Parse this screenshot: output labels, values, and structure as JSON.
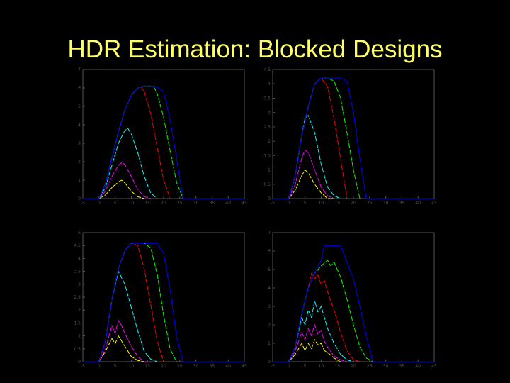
{
  "slide": {
    "title": "HDR Estimation: Blocked Designs"
  },
  "colors": {
    "background": "#000000",
    "title": "#ffff66",
    "axes": "#555555"
  },
  "chart_data": [
    {
      "type": "line",
      "panel": "top-left",
      "xlim": [
        -5,
        45
      ],
      "ylim": [
        0,
        7
      ],
      "xticks": [
        "-5",
        "0",
        "5",
        "10",
        "15",
        "20",
        "25",
        "30",
        "35",
        "40",
        "45"
      ],
      "yticks": [
        "0",
        "1",
        "2",
        "3",
        "4",
        "5",
        "6",
        "7"
      ],
      "series": [
        {
          "color": "#ffff00",
          "x": [
            0,
            2,
            4,
            6,
            7,
            8,
            10,
            12,
            14
          ],
          "y": [
            0,
            0.2,
            0.6,
            0.9,
            1.0,
            0.85,
            0.4,
            0.1,
            0
          ]
        },
        {
          "color": "#ff00ff",
          "x": [
            0,
            2,
            4,
            6,
            7,
            8,
            10,
            12,
            14,
            16
          ],
          "y": [
            0,
            0.4,
            1.2,
            1.8,
            1.95,
            1.85,
            1.2,
            0.5,
            0.1,
            0
          ]
        },
        {
          "color": "#00ffff",
          "x": [
            0,
            2,
            4,
            6,
            8,
            9,
            10,
            12,
            14,
            16,
            18
          ],
          "y": [
            0,
            0.6,
            1.8,
            3.0,
            3.7,
            3.8,
            3.5,
            2.5,
            1.2,
            0.3,
            0
          ]
        },
        {
          "color": "#ff0000",
          "x": [
            0,
            2,
            4,
            6,
            8,
            10,
            12,
            13,
            14,
            16,
            18,
            20,
            22
          ],
          "y": [
            0,
            0.8,
            2.2,
            3.6,
            4.8,
            5.6,
            6.0,
            6.05,
            5.8,
            4.6,
            2.8,
            1.0,
            0
          ]
        },
        {
          "color": "#00ff00",
          "x": [
            0,
            2,
            4,
            6,
            8,
            10,
            12,
            14,
            16,
            17,
            18,
            20,
            22,
            24,
            26
          ],
          "y": [
            0,
            0.8,
            2.2,
            3.6,
            4.8,
            5.6,
            6.0,
            6.1,
            6.1,
            6.05,
            5.7,
            4.4,
            2.6,
            0.9,
            0
          ]
        },
        {
          "color": "#0000ff",
          "x": [
            -5,
            0,
            2,
            4,
            6,
            8,
            10,
            12,
            14,
            16,
            18,
            20,
            22,
            24,
            26,
            45
          ],
          "y": [
            0,
            0,
            0.8,
            2.2,
            3.6,
            4.8,
            5.6,
            6.0,
            6.1,
            6.1,
            6.05,
            5.8,
            4.3,
            2.2,
            0,
            0
          ]
        }
      ]
    },
    {
      "type": "line",
      "panel": "top-right",
      "xlim": [
        -5,
        45
      ],
      "ylim": [
        0,
        4.5
      ],
      "xticks": [
        "-5",
        "0",
        "5",
        "10",
        "15",
        "20",
        "25",
        "30",
        "35",
        "40",
        "45"
      ],
      "yticks": [
        "0",
        "0.5",
        "1",
        "1.5",
        "2",
        "2.5",
        "3",
        "3.5",
        "4",
        "4.5"
      ],
      "series": [
        {
          "color": "#ffff00",
          "x": [
            0,
            2,
            4,
            5,
            6,
            8,
            10,
            12,
            14
          ],
          "y": [
            0,
            0.3,
            0.8,
            1.0,
            0.9,
            0.5,
            0.2,
            0,
            0
          ]
        },
        {
          "color": "#ff00ff",
          "x": [
            0,
            2,
            4,
            5,
            6,
            8,
            10,
            12,
            14
          ],
          "y": [
            0,
            0.5,
            1.4,
            1.7,
            1.6,
            1.0,
            0.4,
            0.1,
            0
          ]
        },
        {
          "color": "#00ffff",
          "x": [
            0,
            2,
            4,
            5,
            6,
            8,
            10,
            12,
            14,
            16
          ],
          "y": [
            0,
            0.8,
            2.2,
            2.8,
            2.9,
            2.3,
            1.2,
            0.4,
            0.1,
            0
          ]
        },
        {
          "color": "#ff0000",
          "x": [
            0,
            2,
            4,
            6,
            8,
            10,
            12,
            14,
            16,
            18
          ],
          "y": [
            0,
            0.8,
            2.2,
            3.2,
            4.0,
            4.2,
            3.9,
            2.8,
            1.4,
            0
          ]
        },
        {
          "color": "#00ff00",
          "x": [
            0,
            2,
            4,
            6,
            8,
            10,
            12,
            14,
            16,
            18,
            20,
            22
          ],
          "y": [
            0,
            0.8,
            2.2,
            3.2,
            4.0,
            4.2,
            4.2,
            4.1,
            3.5,
            2.3,
            1.0,
            0
          ]
        },
        {
          "color": "#0000ff",
          "x": [
            -5,
            0,
            2,
            4,
            6,
            8,
            10,
            12,
            14,
            16,
            18,
            20,
            22,
            24,
            45
          ],
          "y": [
            0,
            0,
            0.8,
            2.2,
            3.2,
            4.0,
            4.2,
            4.2,
            4.2,
            4.2,
            4.1,
            3.0,
            1.4,
            0,
            0
          ]
        }
      ]
    },
    {
      "type": "line",
      "panel": "bottom-left",
      "xlim": [
        -5,
        45
      ],
      "ylim": [
        0,
        5
      ],
      "xticks": [
        "-5",
        "0",
        "5",
        "10",
        "15",
        "20",
        "25",
        "30",
        "35",
        "40",
        "45"
      ],
      "yticks": [
        "0",
        "0.5",
        "1",
        "1.5",
        "2",
        "2.5",
        "3",
        "3.5",
        "4",
        "4.5",
        "5"
      ],
      "series": [
        {
          "color": "#ffff00",
          "x": [
            0,
            2,
            4,
            5,
            6,
            7,
            8,
            10,
            12,
            14
          ],
          "y": [
            0,
            0.4,
            0.9,
            0.7,
            1.0,
            0.8,
            0.6,
            0.2,
            0.05,
            0
          ]
        },
        {
          "color": "#ff00ff",
          "x": [
            0,
            2,
            4,
            5,
            6,
            7,
            8,
            10,
            12,
            14,
            16
          ],
          "y": [
            0,
            0.5,
            1.4,
            1.1,
            1.6,
            1.4,
            1.1,
            0.6,
            0.2,
            0,
            0
          ]
        },
        {
          "color": "#00ffff",
          "x": [
            0,
            2,
            4,
            6,
            8,
            10,
            12,
            14,
            16,
            18
          ],
          "y": [
            0,
            0.8,
            2.4,
            3.5,
            3.0,
            2.1,
            1.2,
            0.4,
            0.1,
            0
          ]
        },
        {
          "color": "#ff0000",
          "x": [
            0,
            2,
            4,
            6,
            8,
            10,
            12,
            14,
            16,
            18,
            20
          ],
          "y": [
            0,
            0.8,
            2.4,
            3.6,
            4.3,
            4.6,
            4.5,
            3.6,
            2.2,
            0.8,
            0
          ]
        },
        {
          "color": "#00ff00",
          "x": [
            0,
            2,
            4,
            6,
            8,
            10,
            12,
            14,
            16,
            18,
            20,
            22,
            24
          ],
          "y": [
            0,
            0.8,
            2.4,
            3.6,
            4.3,
            4.6,
            4.6,
            4.6,
            4.4,
            3.4,
            1.8,
            0.5,
            0
          ]
        },
        {
          "color": "#0000ff",
          "x": [
            -5,
            0,
            2,
            4,
            6,
            8,
            10,
            12,
            14,
            16,
            18,
            20,
            22,
            24,
            26,
            45
          ],
          "y": [
            0,
            0,
            0.8,
            2.4,
            3.6,
            4.3,
            4.6,
            4.6,
            4.6,
            4.6,
            4.6,
            4.2,
            2.8,
            1.0,
            0,
            0
          ]
        }
      ]
    },
    {
      "type": "line",
      "panel": "bottom-right",
      "xlim": [
        -5,
        45
      ],
      "ylim": [
        0,
        7
      ],
      "xticks": [
        "-5",
        "0",
        "5",
        "10",
        "15",
        "20",
        "25",
        "30",
        "35",
        "40",
        "45"
      ],
      "yticks": [
        "0",
        "1",
        "2",
        "3",
        "4",
        "5",
        "6",
        "7"
      ],
      "series": [
        {
          "color": "#ffff00",
          "x": [
            0,
            2,
            4,
            5,
            6,
            7,
            8,
            9,
            10,
            11,
            12,
            14,
            16
          ],
          "y": [
            0,
            0.4,
            1.0,
            0.6,
            1.0,
            0.7,
            1.2,
            0.9,
            1.0,
            0.6,
            0.5,
            0.2,
            0
          ]
        },
        {
          "color": "#ff00ff",
          "x": [
            0,
            2,
            4,
            5,
            6,
            7,
            8,
            9,
            10,
            11,
            12,
            14,
            16,
            18
          ],
          "y": [
            0,
            0.6,
            1.6,
            1.2,
            1.8,
            1.4,
            2.0,
            1.5,
            1.7,
            1.1,
            0.8,
            0.3,
            0.1,
            0
          ]
        },
        {
          "color": "#00ffff",
          "x": [
            0,
            2,
            4,
            5,
            6,
            7,
            8,
            9,
            10,
            11,
            12,
            14,
            16,
            18,
            20
          ],
          "y": [
            0,
            0.8,
            2.4,
            2.0,
            2.8,
            2.4,
            3.3,
            2.7,
            3.0,
            2.4,
            1.8,
            1.0,
            0.4,
            0.1,
            0
          ]
        },
        {
          "color": "#ff0000",
          "x": [
            0,
            2,
            4,
            6,
            7,
            8,
            9,
            10,
            11,
            12,
            14,
            16,
            18,
            20,
            22
          ],
          "y": [
            0,
            0.8,
            2.6,
            4.0,
            4.8,
            4.5,
            4.7,
            4.2,
            4.4,
            3.8,
            2.8,
            1.6,
            0.6,
            0.1,
            0
          ]
        },
        {
          "color": "#00ff00",
          "x": [
            0,
            2,
            4,
            6,
            8,
            10,
            12,
            13,
            14,
            15,
            16,
            18,
            20,
            22,
            24,
            26
          ],
          "y": [
            0,
            0.8,
            2.6,
            4.0,
            4.8,
            5.2,
            5.5,
            5.2,
            5.4,
            5.0,
            4.6,
            3.4,
            2.0,
            0.8,
            0.2,
            0
          ]
        },
        {
          "color": "#0000ff",
          "x": [
            -5,
            0,
            2,
            4,
            6,
            8,
            10,
            11,
            12,
            14,
            16,
            18,
            20,
            22,
            24,
            26,
            45
          ],
          "y": [
            0,
            0,
            0.8,
            2.6,
            4.0,
            4.8,
            5.5,
            6.3,
            6.3,
            6.3,
            6.3,
            5.4,
            4.5,
            3.0,
            1.4,
            0,
            0
          ]
        }
      ]
    }
  ]
}
